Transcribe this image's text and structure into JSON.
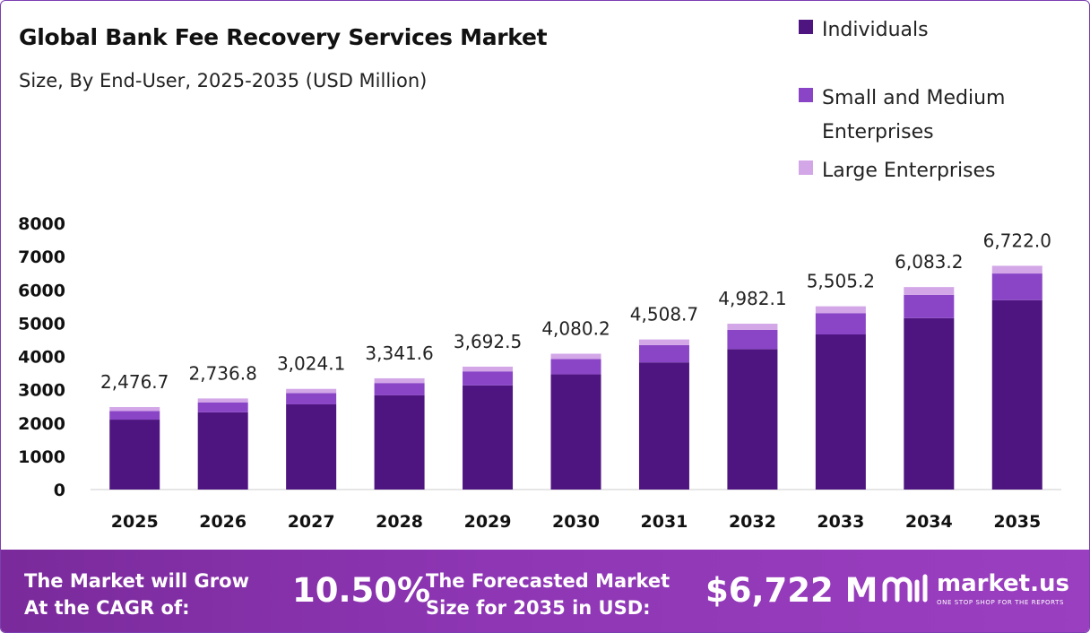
{
  "title": "Global Bank Fee Recovery Services Market",
  "subtitle": "Size, By End-User, 2025-2035 (USD Million)",
  "colors": {
    "individuals": "#4e1580",
    "sme": "#8a45c6",
    "large": "#d3a6e8",
    "axis": "#cccccc",
    "footer": "#8a33b0"
  },
  "chart_data": {
    "type": "bar",
    "stacked": true,
    "categories": [
      "2025",
      "2026",
      "2027",
      "2028",
      "2029",
      "2030",
      "2031",
      "2032",
      "2033",
      "2034",
      "2035"
    ],
    "series": [
      {
        "name": "Individuals",
        "values": [
          2100,
          2320,
          2560,
          2830,
          3130,
          3460,
          3820,
          4220,
          4660,
          5150,
          5690
        ]
      },
      {
        "name": "Small and Medium Enterprises",
        "values": [
          260,
          300,
          340,
          370,
          420,
          460,
          520,
          580,
          640,
          700,
          800
        ]
      },
      {
        "name": "Large Enterprises",
        "values": [
          116.7,
          116.8,
          124.1,
          141.6,
          142.5,
          160.2,
          168.7,
          182.1,
          205.2,
          233.2,
          232.0
        ]
      }
    ],
    "totals": [
      "2,476.7",
      "2,736.8",
      "3,024.1",
      "3,341.6",
      "3,692.5",
      "4,080.2",
      "4,508.7",
      "4,982.1",
      "5,505.2",
      "6,083.2",
      "6,722.0"
    ],
    "total_values": [
      2476.7,
      2736.8,
      3024.1,
      3341.6,
      3692.5,
      4080.2,
      4508.7,
      4982.1,
      5505.2,
      6083.2,
      6722.0
    ],
    "yticks": [
      "0",
      "1000",
      "2000",
      "3000",
      "4000",
      "5000",
      "6000",
      "7000",
      "8000"
    ],
    "ylim": [
      0,
      8000
    ],
    "legend_position": "top-right",
    "grid": false
  },
  "footer": {
    "cagr_label_line1": "The Market will Grow",
    "cagr_label_line2": "At the CAGR of:",
    "cagr_value": "10.50%",
    "size_label_line1": "The Forecasted Market",
    "size_label_line2": "Size for 2035 in USD:",
    "size_value": "$6,722 M",
    "brand_name": "market.us",
    "brand_tagline": "ONE STOP SHOP FOR THE REPORTS",
    "brand_icon": "market-us-logo-icon"
  }
}
